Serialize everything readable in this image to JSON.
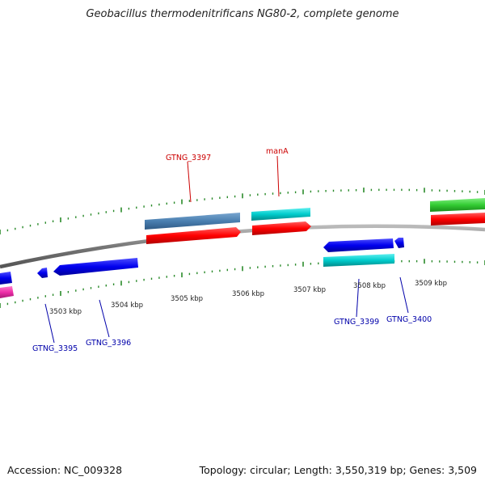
{
  "title": "Geobacillus thermodenitrificans NG80-2, complete genome",
  "footer": {
    "accession": "Accession: NC_009328",
    "summary": "Topology: circular; Length: 3,550,319 bp; Genes: 3,509"
  },
  "axis": {
    "ticks": [
      {
        "label": "3503 kbp"
      },
      {
        "label": "3504 kbp"
      },
      {
        "label": "3505 kbp"
      },
      {
        "label": "3506 kbp"
      },
      {
        "label": "3507 kbp"
      },
      {
        "label": "3508 kbp"
      },
      {
        "label": "3509 kbp"
      }
    ]
  },
  "gene_labels": {
    "forward": [
      "GTNG_3397",
      "manA"
    ],
    "reverse": [
      "GTNG_3395",
      "GTNG_3396",
      "GTNG_3399",
      "GTNG_3400"
    ]
  },
  "colors": {
    "backbone": "#888888",
    "tick": "#2a8a2a",
    "forward_label": "#cc0000",
    "reverse_label": "#0000aa",
    "cds_forward": "#ff0000",
    "cds_reverse": "#0000ee",
    "gene_steel": "#4a7fb0",
    "gene_cyan": "#00cccc",
    "gene_green": "#33cc33",
    "gene_magenta": "#ee2ea8"
  }
}
